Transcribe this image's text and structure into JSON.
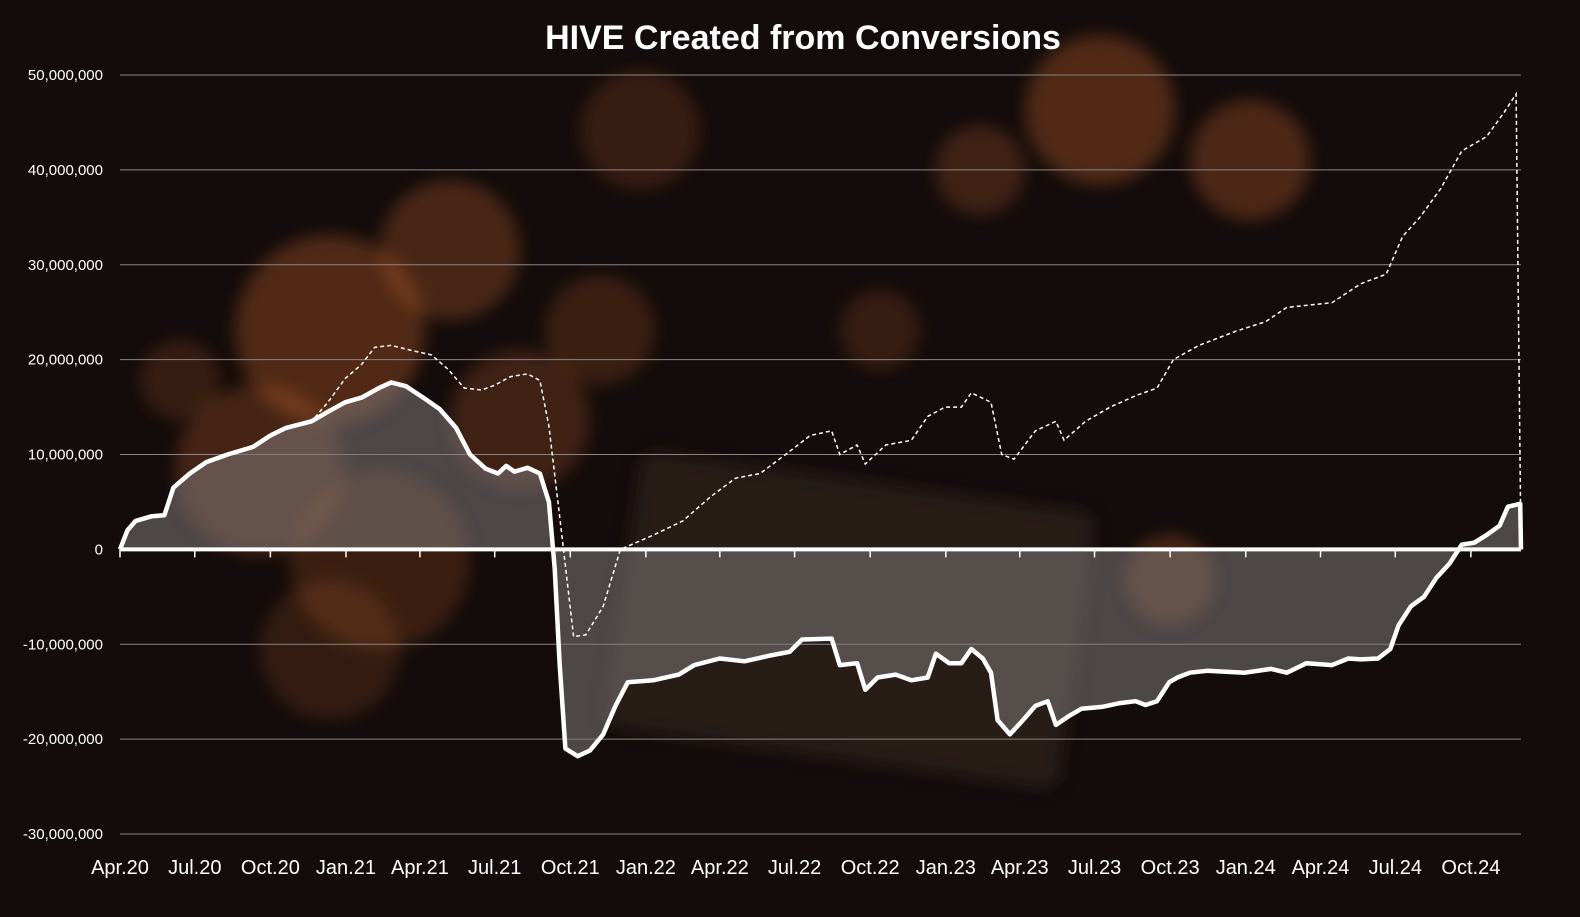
{
  "title": "HIVE Created from Conversions",
  "colors": {
    "background": "#140c0c",
    "line": "#ffffff",
    "area_fill": "#7d7878",
    "grid": "#8a8484",
    "decor_orange": "#c4642a",
    "decor_dark": "#2e2420"
  },
  "chart_data": {
    "type": "line",
    "title": "HIVE Created from Conversions",
    "xlabel": "",
    "ylabel": "",
    "ylim": [
      -30000000,
      50000000
    ],
    "grid": true,
    "legend": "none",
    "x_tick_labels": [
      "Apr.20",
      "Jul.20",
      "Oct.20",
      "Jan.21",
      "Apr.21",
      "Jul.21",
      "Oct.21",
      "Jan.22",
      "Apr.22",
      "Jul.22",
      "Oct.22",
      "Jan.23",
      "Apr.23",
      "Jul.23",
      "Oct.23",
      "Jan.24",
      "Apr.24",
      "Jul.24",
      "Oct.24"
    ],
    "y_tick_labels": [
      "50,000,000",
      "40,000,000",
      "30,000,000",
      "20,000,000",
      "10,000,000",
      "0",
      "-10,000,000",
      "-20,000,000",
      "-30,000,000"
    ],
    "y_tick_values": [
      50000000,
      40000000,
      30000000,
      20000000,
      10000000,
      0,
      -10000000,
      -20000000,
      -30000000
    ],
    "series": [
      {
        "style": "solid-thick-area",
        "points": [
          [
            "2020-04-01",
            0
          ],
          [
            "2020-04-10",
            2000000
          ],
          [
            "2020-04-20",
            3000000
          ],
          [
            "2020-05-10",
            3500000
          ],
          [
            "2020-05-25",
            3600000
          ],
          [
            "2020-06-05",
            6500000
          ],
          [
            "2020-06-25",
            8000000
          ],
          [
            "2020-07-15",
            9200000
          ],
          [
            "2020-08-10",
            10000000
          ],
          [
            "2020-09-10",
            10800000
          ],
          [
            "2020-10-01",
            12000000
          ],
          [
            "2020-10-20",
            12800000
          ],
          [
            "2020-11-20",
            13500000
          ],
          [
            "2020-12-10",
            14500000
          ],
          [
            "2020-12-31",
            15500000
          ],
          [
            "2021-01-20",
            16000000
          ],
          [
            "2021-02-10",
            17000000
          ],
          [
            "2021-02-25",
            17600000
          ],
          [
            "2021-03-15",
            17200000
          ],
          [
            "2021-04-05",
            16000000
          ],
          [
            "2021-04-25",
            14800000
          ],
          [
            "2021-05-15",
            12800000
          ],
          [
            "2021-06-01",
            10000000
          ],
          [
            "2021-06-20",
            8500000
          ],
          [
            "2021-07-05",
            8000000
          ],
          [
            "2021-07-15",
            8800000
          ],
          [
            "2021-07-25",
            8200000
          ],
          [
            "2021-08-10",
            8600000
          ],
          [
            "2021-08-25",
            8000000
          ],
          [
            "2021-09-05",
            5000000
          ],
          [
            "2021-09-12",
            -2000000
          ],
          [
            "2021-09-18",
            -12000000
          ],
          [
            "2021-09-25",
            -21000000
          ],
          [
            "2021-10-10",
            -21800000
          ],
          [
            "2021-10-25",
            -21200000
          ],
          [
            "2021-11-10",
            -19500000
          ],
          [
            "2021-11-25",
            -16500000
          ],
          [
            "2021-12-10",
            -14000000
          ],
          [
            "2022-01-10",
            -13800000
          ],
          [
            "2022-02-10",
            -13200000
          ],
          [
            "2022-03-01",
            -12200000
          ],
          [
            "2022-04-01",
            -11500000
          ],
          [
            "2022-05-01",
            -11800000
          ],
          [
            "2022-06-01",
            -11200000
          ],
          [
            "2022-06-25",
            -10800000
          ],
          [
            "2022-07-10",
            -9500000
          ],
          [
            "2022-08-15",
            -9400000
          ],
          [
            "2022-08-25",
            -12200000
          ],
          [
            "2022-09-15",
            -12000000
          ],
          [
            "2022-09-25",
            -14800000
          ],
          [
            "2022-10-10",
            -13500000
          ],
          [
            "2022-11-01",
            -13200000
          ],
          [
            "2022-11-20",
            -13800000
          ],
          [
            "2022-12-10",
            -13500000
          ],
          [
            "2022-12-20",
            -11000000
          ],
          [
            "2023-01-05",
            -12000000
          ],
          [
            "2023-01-20",
            -12000000
          ],
          [
            "2023-02-01",
            -10500000
          ],
          [
            "2023-02-15",
            -11500000
          ],
          [
            "2023-02-25",
            -13000000
          ],
          [
            "2023-03-05",
            -18000000
          ],
          [
            "2023-03-20",
            -19500000
          ],
          [
            "2023-04-05",
            -18000000
          ],
          [
            "2023-04-20",
            -16500000
          ],
          [
            "2023-05-05",
            -16000000
          ],
          [
            "2023-05-15",
            -18500000
          ],
          [
            "2023-06-01",
            -17500000
          ],
          [
            "2023-06-15",
            -16800000
          ],
          [
            "2023-07-10",
            -16600000
          ],
          [
            "2023-08-01",
            -16200000
          ],
          [
            "2023-08-20",
            -16000000
          ],
          [
            "2023-09-01",
            -16400000
          ],
          [
            "2023-09-15",
            -16000000
          ],
          [
            "2023-09-30",
            -14000000
          ],
          [
            "2023-10-10",
            -13500000
          ],
          [
            "2023-10-25",
            -13000000
          ],
          [
            "2023-11-15",
            -12800000
          ],
          [
            "2023-12-31",
            -13000000
          ],
          [
            "2024-02-01",
            -12600000
          ],
          [
            "2024-02-20",
            -13000000
          ],
          [
            "2024-03-15",
            -12000000
          ],
          [
            "2024-04-15",
            -12200000
          ],
          [
            "2024-05-05",
            -11500000
          ],
          [
            "2024-05-20",
            -11600000
          ],
          [
            "2024-06-10",
            -11500000
          ],
          [
            "2024-06-25",
            -10500000
          ],
          [
            "2024-07-05",
            -8000000
          ],
          [
            "2024-07-20",
            -6000000
          ],
          [
            "2024-08-05",
            -5000000
          ],
          [
            "2024-08-20",
            -3000000
          ],
          [
            "2024-09-05",
            -1500000
          ],
          [
            "2024-09-20",
            500000
          ],
          [
            "2024-10-05",
            700000
          ],
          [
            "2024-10-20",
            1500000
          ],
          [
            "2024-11-05",
            2500000
          ],
          [
            "2024-11-15",
            4500000
          ],
          [
            "2024-11-30",
            4800000
          ],
          [
            "2024-12-01",
            0
          ]
        ]
      },
      {
        "style": "dashed-thin",
        "points": [
          [
            "2020-04-01",
            0
          ],
          [
            "2020-04-10",
            2000000
          ],
          [
            "2020-04-20",
            3000000
          ],
          [
            "2020-05-10",
            3500000
          ],
          [
            "2020-05-25",
            3600000
          ],
          [
            "2020-06-05",
            6500000
          ],
          [
            "2020-06-25",
            8000000
          ],
          [
            "2020-07-15",
            9200000
          ],
          [
            "2020-08-10",
            10000000
          ],
          [
            "2020-09-10",
            10800000
          ],
          [
            "2020-10-01",
            12000000
          ],
          [
            "2020-10-20",
            12800000
          ],
          [
            "2020-11-20",
            13500000
          ],
          [
            "2020-12-10",
            15500000
          ],
          [
            "2020-12-31",
            18000000
          ],
          [
            "2021-01-20",
            19500000
          ],
          [
            "2021-02-05",
            21300000
          ],
          [
            "2021-02-25",
            21500000
          ],
          [
            "2021-03-20",
            21000000
          ],
          [
            "2021-04-15",
            20500000
          ],
          [
            "2021-05-05",
            19000000
          ],
          [
            "2021-05-25",
            17000000
          ],
          [
            "2021-06-15",
            16800000
          ],
          [
            "2021-07-01",
            17300000
          ],
          [
            "2021-07-20",
            18200000
          ],
          [
            "2021-08-10",
            18500000
          ],
          [
            "2021-08-25",
            17800000
          ],
          [
            "2021-09-05",
            13000000
          ],
          [
            "2021-09-20",
            2000000
          ],
          [
            "2021-10-05",
            -9200000
          ],
          [
            "2021-10-20",
            -9000000
          ],
          [
            "2021-11-10",
            -6000000
          ],
          [
            "2021-12-01",
            0
          ],
          [
            "2022-01-10",
            1500000
          ],
          [
            "2022-02-15",
            3000000
          ],
          [
            "2022-03-20",
            5500000
          ],
          [
            "2022-04-20",
            7500000
          ],
          [
            "2022-05-20",
            8000000
          ],
          [
            "2022-06-20",
            10000000
          ],
          [
            "2022-07-20",
            12000000
          ],
          [
            "2022-08-15",
            12500000
          ],
          [
            "2022-08-25",
            10000000
          ],
          [
            "2022-09-15",
            11000000
          ],
          [
            "2022-09-25",
            9000000
          ],
          [
            "2022-10-20",
            11000000
          ],
          [
            "2022-11-20",
            11500000
          ],
          [
            "2022-12-10",
            14000000
          ],
          [
            "2022-12-31",
            15000000
          ],
          [
            "2023-01-20",
            15000000
          ],
          [
            "2023-02-01",
            16500000
          ],
          [
            "2023-02-25",
            15500000
          ],
          [
            "2023-03-10",
            10000000
          ],
          [
            "2023-03-25",
            9500000
          ],
          [
            "2023-04-20",
            12500000
          ],
          [
            "2023-05-15",
            13500000
          ],
          [
            "2023-05-25",
            11500000
          ],
          [
            "2023-06-20",
            13500000
          ],
          [
            "2023-07-20",
            15000000
          ],
          [
            "2023-08-20",
            16200000
          ],
          [
            "2023-09-15",
            17000000
          ],
          [
            "2023-10-05",
            20000000
          ],
          [
            "2023-11-05",
            21500000
          ],
          [
            "2023-12-20",
            23000000
          ],
          [
            "2024-01-25",
            24000000
          ],
          [
            "2024-02-20",
            25500000
          ],
          [
            "2024-04-15",
            26000000
          ],
          [
            "2024-05-20",
            28000000
          ],
          [
            "2024-06-20",
            29000000
          ],
          [
            "2024-07-10",
            33000000
          ],
          [
            "2024-07-31",
            35000000
          ],
          [
            "2024-08-25",
            38000000
          ],
          [
            "2024-09-20",
            42000000
          ],
          [
            "2024-10-20",
            43500000
          ],
          [
            "2024-11-10",
            46000000
          ],
          [
            "2024-11-25",
            48000000
          ],
          [
            "2024-12-01",
            0
          ]
        ]
      }
    ]
  }
}
